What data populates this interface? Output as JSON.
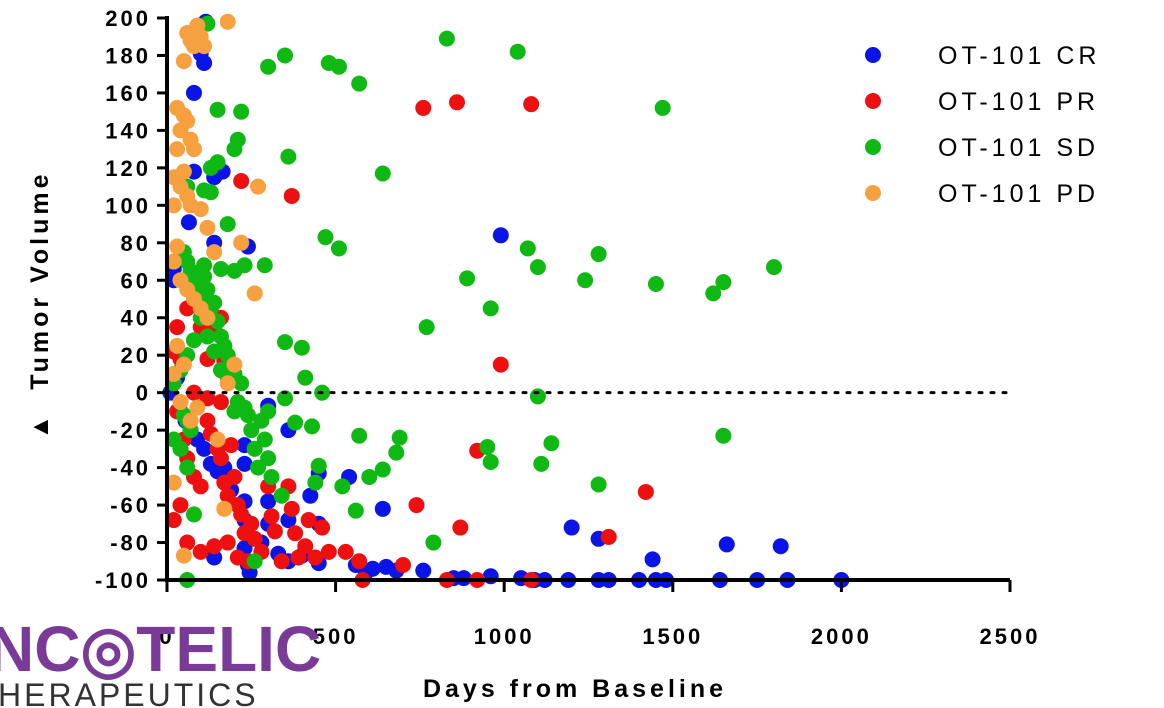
{
  "chart_data": {
    "type": "scatter",
    "title": "",
    "xlabel": "Days from Baseline",
    "ylabel": "Tumor Volume",
    "ylabel_prefix": "▲",
    "xlim": [
      0,
      2500
    ],
    "ylim": [
      -100,
      200
    ],
    "x_ticks": [
      0,
      500,
      1000,
      1500,
      2000,
      2500
    ],
    "y_ticks": [
      200,
      180,
      160,
      140,
      120,
      100,
      80,
      60,
      40,
      20,
      0,
      -20,
      -40,
      -60,
      -80,
      -100
    ],
    "reference_line": {
      "y": 0,
      "style": "dotted"
    },
    "grid": false,
    "legend_position": "top-right",
    "series": [
      {
        "name": "OT-101 CR",
        "color": "#0a14e6",
        "points": [
          [
            115,
            198
          ],
          [
            100,
            181
          ],
          [
            110,
            176
          ],
          [
            80,
            160
          ],
          [
            80,
            118
          ],
          [
            140,
            115
          ],
          [
            165,
            118
          ],
          [
            65,
            91
          ],
          [
            140,
            80
          ],
          [
            240,
            78
          ],
          [
            20,
            66
          ],
          [
            20,
            60
          ],
          [
            10,
            0
          ],
          [
            30,
            8
          ],
          [
            40,
            -10
          ],
          [
            55,
            -15
          ],
          [
            70,
            -20
          ],
          [
            90,
            -25
          ],
          [
            110,
            -30
          ],
          [
            130,
            -38
          ],
          [
            150,
            -42
          ],
          [
            170,
            -40
          ],
          [
            190,
            -52
          ],
          [
            230,
            -28
          ],
          [
            230,
            -38
          ],
          [
            230,
            -58
          ],
          [
            230,
            -68
          ],
          [
            230,
            -83
          ],
          [
            240,
            -92
          ],
          [
            245,
            -96
          ],
          [
            140,
            -88
          ],
          [
            300,
            -70
          ],
          [
            300,
            -58
          ],
          [
            360,
            -68
          ],
          [
            330,
            -86
          ],
          [
            280,
            -80
          ],
          [
            300,
            -7
          ],
          [
            360,
            -20
          ],
          [
            425,
            -55
          ],
          [
            450,
            -43
          ],
          [
            540,
            -45
          ],
          [
            450,
            -70
          ],
          [
            400,
            -87
          ],
          [
            360,
            -90
          ],
          [
            450,
            -91
          ],
          [
            560,
            -92
          ],
          [
            590,
            -96
          ],
          [
            610,
            -94
          ],
          [
            650,
            -93
          ],
          [
            680,
            -95
          ],
          [
            760,
            -95
          ],
          [
            640,
            -62
          ],
          [
            990,
            84
          ],
          [
            1200,
            -72
          ],
          [
            1280,
            -78
          ],
          [
            1440,
            -89
          ],
          [
            1660,
            -81
          ],
          [
            1820,
            -82
          ],
          [
            850,
            -99
          ],
          [
            880,
            -99
          ],
          [
            960,
            -98
          ],
          [
            1050,
            -99
          ],
          [
            1090,
            -100
          ],
          [
            1120,
            -100
          ],
          [
            1190,
            -100
          ],
          [
            1280,
            -100
          ],
          [
            1310,
            -100
          ],
          [
            1400,
            -100
          ],
          [
            1450,
            -100
          ],
          [
            1480,
            -100
          ],
          [
            1640,
            -100
          ],
          [
            1750,
            -100
          ],
          [
            1840,
            -100
          ],
          [
            2000,
            -100
          ]
        ]
      },
      {
        "name": "OT-101 PR",
        "color": "#ee1010",
        "points": [
          [
            760,
            152
          ],
          [
            860,
            155
          ],
          [
            1080,
            154
          ],
          [
            220,
            113
          ],
          [
            370,
            105
          ],
          [
            990,
            15
          ],
          [
            920,
            -31
          ],
          [
            1420,
            -53
          ],
          [
            1310,
            -77
          ],
          [
            870,
            -72
          ],
          [
            740,
            -60
          ],
          [
            30,
            35
          ],
          [
            40,
            18
          ],
          [
            60,
            45
          ],
          [
            80,
            50
          ],
          [
            100,
            35
          ],
          [
            120,
            18
          ],
          [
            140,
            35
          ],
          [
            160,
            40
          ],
          [
            170,
            17
          ],
          [
            20,
            22
          ],
          [
            30,
            -10
          ],
          [
            50,
            -25
          ],
          [
            60,
            -35
          ],
          [
            80,
            -45
          ],
          [
            100,
            -50
          ],
          [
            120,
            -15
          ],
          [
            130,
            -22
          ],
          [
            150,
            -30
          ],
          [
            160,
            -35
          ],
          [
            170,
            -48
          ],
          [
            180,
            -55
          ],
          [
            190,
            -28
          ],
          [
            200,
            -45
          ],
          [
            210,
            -60
          ],
          [
            220,
            -65
          ],
          [
            230,
            -75
          ],
          [
            250,
            -70
          ],
          [
            260,
            -78
          ],
          [
            280,
            -85
          ],
          [
            300,
            -50
          ],
          [
            310,
            -66
          ],
          [
            320,
            -74
          ],
          [
            340,
            -90
          ],
          [
            360,
            -50
          ],
          [
            370,
            -62
          ],
          [
            380,
            -75
          ],
          [
            390,
            -88
          ],
          [
            410,
            -82
          ],
          [
            420,
            -68
          ],
          [
            440,
            -88
          ],
          [
            460,
            -72
          ],
          [
            480,
            -85
          ],
          [
            530,
            -85
          ],
          [
            570,
            -90
          ],
          [
            580,
            -100
          ],
          [
            700,
            -92
          ],
          [
            830,
            -100
          ],
          [
            920,
            -100
          ],
          [
            1080,
            -100
          ],
          [
            20,
            -68
          ],
          [
            40,
            -60
          ],
          [
            60,
            -80
          ],
          [
            100,
            -85
          ],
          [
            140,
            -82
          ],
          [
            180,
            -80
          ],
          [
            210,
            -88
          ],
          [
            240,
            -90
          ],
          [
            120,
            -3
          ],
          [
            160,
            -5
          ],
          [
            80,
            0
          ]
        ]
      },
      {
        "name": "OT-101 SD",
        "color": "#10b814",
        "points": [
          [
            830,
            189
          ],
          [
            1040,
            182
          ],
          [
            350,
            180
          ],
          [
            300,
            174
          ],
          [
            480,
            176
          ],
          [
            510,
            174
          ],
          [
            570,
            165
          ],
          [
            1470,
            152
          ],
          [
            640,
            117
          ],
          [
            360,
            126
          ],
          [
            120,
            197
          ],
          [
            150,
            151
          ],
          [
            220,
            150
          ],
          [
            130,
            120
          ],
          [
            150,
            123
          ],
          [
            200,
            130
          ],
          [
            210,
            135
          ],
          [
            60,
            110
          ],
          [
            110,
            108
          ],
          [
            130,
            107
          ],
          [
            180,
            90
          ],
          [
            110,
            68
          ],
          [
            160,
            66
          ],
          [
            200,
            65
          ],
          [
            230,
            68
          ],
          [
            290,
            68
          ],
          [
            470,
            83
          ],
          [
            510,
            77
          ],
          [
            890,
            61
          ],
          [
            960,
            45
          ],
          [
            1070,
            77
          ],
          [
            1100,
            67
          ],
          [
            1240,
            60
          ],
          [
            1280,
            74
          ],
          [
            1450,
            58
          ],
          [
            1620,
            53
          ],
          [
            1650,
            59
          ],
          [
            1800,
            67
          ],
          [
            770,
            35
          ],
          [
            350,
            27
          ],
          [
            400,
            24
          ],
          [
            410,
            8
          ],
          [
            460,
            0
          ],
          [
            350,
            -3
          ],
          [
            380,
            -16
          ],
          [
            430,
            -18
          ],
          [
            450,
            -39
          ],
          [
            440,
            -48
          ],
          [
            520,
            -50
          ],
          [
            600,
            -45
          ],
          [
            640,
            -41
          ],
          [
            680,
            -32
          ],
          [
            690,
            -24
          ],
          [
            570,
            -23
          ],
          [
            560,
            -63
          ],
          [
            790,
            -80
          ],
          [
            950,
            -29
          ],
          [
            960,
            -37
          ],
          [
            1100,
            -2
          ],
          [
            1110,
            -38
          ],
          [
            1140,
            -27
          ],
          [
            1280,
            -49
          ],
          [
            1650,
            -23
          ],
          [
            20,
            -25
          ],
          [
            40,
            -30
          ],
          [
            50,
            -12
          ],
          [
            60,
            -15
          ],
          [
            70,
            -20
          ],
          [
            50,
            75
          ],
          [
            60,
            70
          ],
          [
            70,
            65
          ],
          [
            80,
            60
          ],
          [
            90,
            55
          ],
          [
            100,
            50
          ],
          [
            110,
            62
          ],
          [
            120,
            55
          ],
          [
            130,
            45
          ],
          [
            140,
            48
          ],
          [
            150,
            38
          ],
          [
            160,
            30
          ],
          [
            170,
            25
          ],
          [
            180,
            20
          ],
          [
            190,
            15
          ],
          [
            200,
            10
          ],
          [
            210,
            -5
          ],
          [
            220,
            5
          ],
          [
            230,
            -8
          ],
          [
            240,
            -12
          ],
          [
            250,
            -20
          ],
          [
            260,
            -30
          ],
          [
            270,
            -40
          ],
          [
            280,
            -15
          ],
          [
            290,
            -25
          ],
          [
            300,
            -35
          ],
          [
            310,
            -45
          ],
          [
            20,
            5
          ],
          [
            40,
            12
          ],
          [
            60,
            20
          ],
          [
            80,
            28
          ],
          [
            100,
            40
          ],
          [
            120,
            30
          ],
          [
            140,
            22
          ],
          [
            160,
            12
          ],
          [
            180,
            8
          ],
          [
            200,
            -10
          ],
          [
            300,
            -10
          ],
          [
            340,
            -55
          ],
          [
            260,
            -90
          ],
          [
            60,
            -100
          ],
          [
            80,
            -65
          ],
          [
            60,
            -40
          ],
          [
            220,
            -8
          ]
        ]
      },
      {
        "name": "OT-101 PD",
        "color": "#f7a040",
        "points": [
          [
            180,
            198
          ],
          [
            90,
            196
          ],
          [
            100,
            190
          ],
          [
            60,
            192
          ],
          [
            70,
            188
          ],
          [
            80,
            185
          ],
          [
            110,
            185
          ],
          [
            50,
            177
          ],
          [
            30,
            152
          ],
          [
            50,
            148
          ],
          [
            60,
            145
          ],
          [
            40,
            140
          ],
          [
            70,
            135
          ],
          [
            80,
            130
          ],
          [
            30,
            130
          ],
          [
            20,
            115
          ],
          [
            50,
            118
          ],
          [
            40,
            110
          ],
          [
            60,
            105
          ],
          [
            70,
            100
          ],
          [
            100,
            98
          ],
          [
            20,
            100
          ],
          [
            120,
            88
          ],
          [
            140,
            75
          ],
          [
            220,
            80
          ],
          [
            270,
            110
          ],
          [
            260,
            53
          ],
          [
            30,
            78
          ],
          [
            20,
            70
          ],
          [
            40,
            60
          ],
          [
            60,
            55
          ],
          [
            80,
            50
          ],
          [
            100,
            45
          ],
          [
            120,
            40
          ],
          [
            30,
            25
          ],
          [
            50,
            15
          ],
          [
            20,
            10
          ],
          [
            40,
            -5
          ],
          [
            70,
            -15
          ],
          [
            20,
            -48
          ],
          [
            50,
            -87
          ],
          [
            150,
            -25
          ],
          [
            170,
            -62
          ],
          [
            90,
            -8
          ],
          [
            180,
            5
          ],
          [
            200,
            15
          ]
        ]
      }
    ]
  },
  "logo": {
    "main_text": "NC◎TELIC",
    "sub_text": "HERAPEUTICS"
  }
}
